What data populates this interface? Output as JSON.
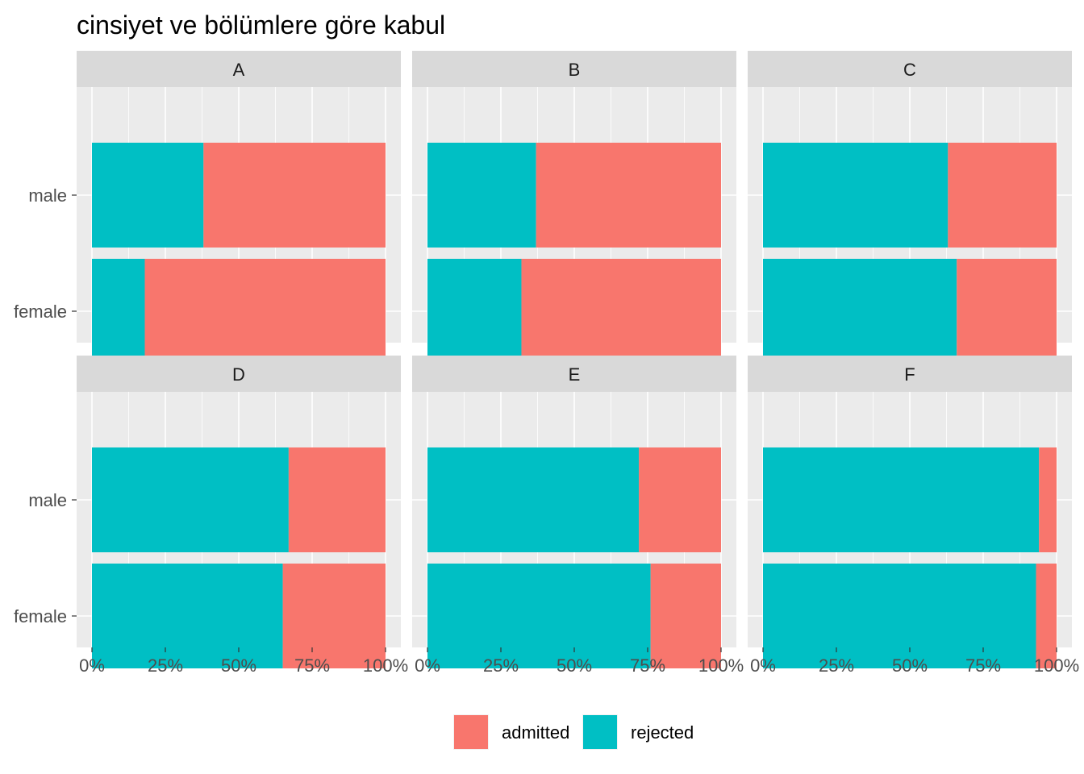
{
  "chart_data": {
    "type": "bar",
    "orientation": "horizontal",
    "stacked": "percent",
    "title": "cinsiyet ve bölümlere göre kabul",
    "categories": [
      "male",
      "female"
    ],
    "x_ticks": [
      "0%",
      "25%",
      "50%",
      "75%",
      "100%"
    ],
    "xlim": [
      0,
      1
    ],
    "grid": true,
    "legend_position": "bottom",
    "series_names": [
      "admitted",
      "rejected"
    ],
    "colors": {
      "admitted": "#F8766D",
      "rejected": "#00BFC4"
    },
    "facets": [
      {
        "name": "A",
        "rejected": {
          "male": 0.38,
          "female": 0.18
        }
      },
      {
        "name": "B",
        "rejected": {
          "male": 0.37,
          "female": 0.32
        }
      },
      {
        "name": "C",
        "rejected": {
          "male": 0.63,
          "female": 0.66
        }
      },
      {
        "name": "D",
        "rejected": {
          "male": 0.67,
          "female": 0.65
        }
      },
      {
        "name": "E",
        "rejected": {
          "male": 0.72,
          "female": 0.76
        }
      },
      {
        "name": "F",
        "rejected": {
          "male": 0.94,
          "female": 0.93
        }
      }
    ]
  }
}
